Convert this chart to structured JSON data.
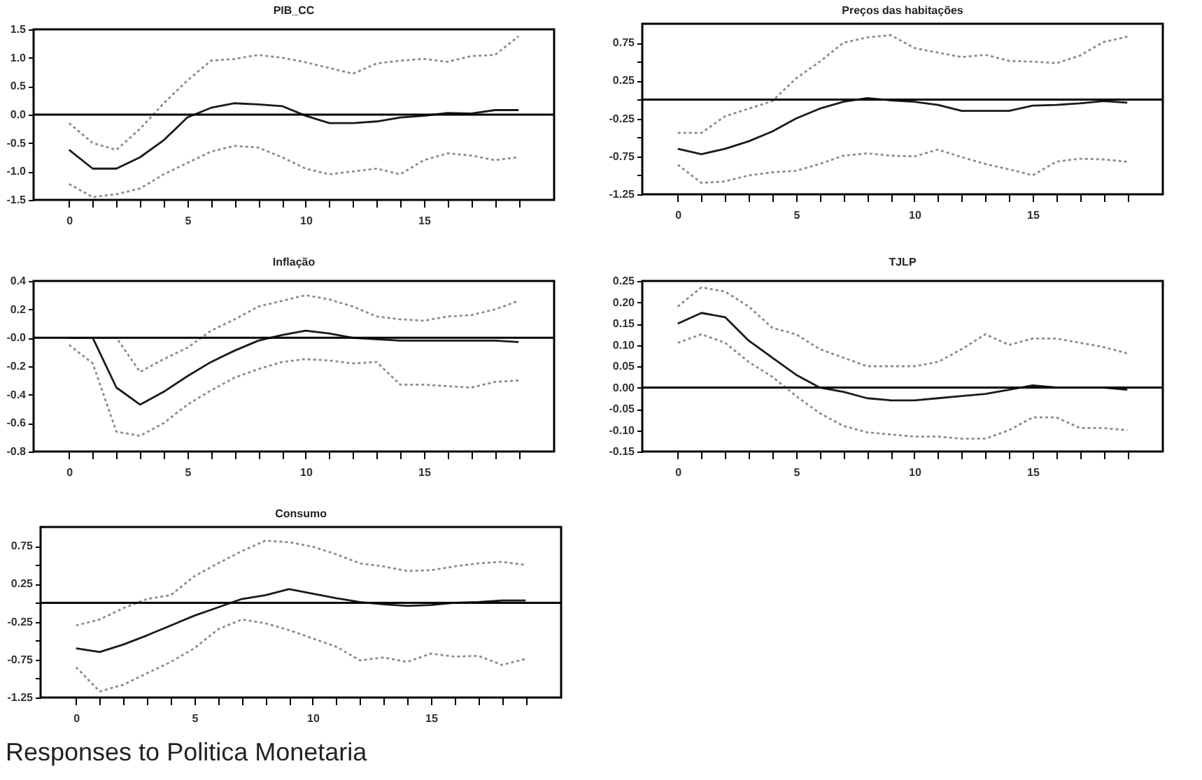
{
  "chart_data": [
    {
      "type": "line",
      "title": "PIB_CC",
      "x": [
        0,
        1,
        2,
        3,
        4,
        5,
        6,
        7,
        8,
        9,
        10,
        11,
        12,
        13,
        14,
        15,
        16,
        17,
        18,
        19
      ],
      "xlim": [
        -1.5,
        20.5
      ],
      "xticks": [
        0,
        {
          "value": 1,
          "label": null
        },
        {
          "value": 2,
          "label": null
        },
        {
          "value": 3,
          "label": null
        },
        {
          "value": 4,
          "label": null
        },
        5,
        {
          "value": 6,
          "label": null
        },
        {
          "value": 7,
          "label": null
        },
        {
          "value": 8,
          "label": null
        },
        {
          "value": 9,
          "label": null
        },
        10,
        {
          "value": 11,
          "label": null
        },
        {
          "value": 12,
          "label": null
        },
        {
          "value": 13,
          "label": null
        },
        {
          "value": 14,
          "label": null
        },
        15,
        {
          "value": 16,
          "label": null
        },
        {
          "value": 17,
          "label": null
        },
        {
          "value": 18,
          "label": null
        },
        {
          "value": 19,
          "label": null
        }
      ],
      "ylim": [
        -1.5,
        1.5
      ],
      "yticks": [
        {
          "value": -1.5,
          "label": "-1.5"
        },
        {
          "value": -1,
          "label": "-1.0"
        },
        {
          "value": -0.5,
          "label": "-0.5"
        },
        {
          "value": 0,
          "label": "0.0"
        },
        {
          "value": 0.5,
          "label": "0.5"
        },
        {
          "value": 1,
          "label": "1.0"
        },
        {
          "value": 1.5,
          "label": "1.5"
        }
      ],
      "grid": false,
      "ref_lines": [
        {
          "axis": "y",
          "value": 0,
          "color": "#000000"
        }
      ],
      "series": [
        {
          "color": "#1a1a1a",
          "line_style": "solid",
          "values": [
            -0.62,
            -0.95,
            -0.95,
            -0.75,
            -0.45,
            -0.05,
            0.12,
            0.2,
            0.18,
            0.15,
            -0.02,
            -0.15,
            -0.15,
            -0.12,
            -0.05,
            -0.02,
            0.03,
            0.02,
            0.08,
            0.08
          ]
        },
        {
          "color": "#8c8c8c",
          "line_style": "dotted",
          "values": [
            -0.15,
            -0.5,
            -0.62,
            -0.25,
            0.2,
            0.6,
            0.95,
            0.98,
            1.05,
            1.0,
            0.92,
            0.82,
            0.72,
            0.9,
            0.95,
            0.98,
            0.93,
            1.03,
            1.05,
            1.38
          ]
        },
        {
          "color": "#8c8c8c",
          "line_style": "dotted",
          "values": [
            -1.22,
            -1.45,
            -1.4,
            -1.3,
            -1.05,
            -0.85,
            -0.65,
            -0.55,
            -0.58,
            -0.75,
            -0.95,
            -1.05,
            -1.0,
            -0.95,
            -1.05,
            -0.8,
            -0.68,
            -0.72,
            -0.8,
            -0.75
          ]
        }
      ]
    },
    {
      "type": "line",
      "title": "Preços das habitações",
      "x": [
        0,
        1,
        2,
        3,
        4,
        5,
        6,
        7,
        8,
        9,
        10,
        11,
        12,
        13,
        14,
        15,
        16,
        17,
        18,
        19
      ],
      "xlim": [
        -1.5,
        20.5
      ],
      "xticks": [
        0,
        {
          "value": 1,
          "label": null
        },
        {
          "value": 2,
          "label": null
        },
        {
          "value": 3,
          "label": null
        },
        {
          "value": 4,
          "label": null
        },
        5,
        {
          "value": 6,
          "label": null
        },
        {
          "value": 7,
          "label": null
        },
        {
          "value": 8,
          "label": null
        },
        {
          "value": 9,
          "label": null
        },
        10,
        {
          "value": 11,
          "label": null
        },
        {
          "value": 12,
          "label": null
        },
        {
          "value": 13,
          "label": null
        },
        {
          "value": 14,
          "label": null
        },
        15,
        {
          "value": 16,
          "label": null
        },
        {
          "value": 17,
          "label": null
        },
        {
          "value": 18,
          "label": null
        },
        {
          "value": 19,
          "label": null
        }
      ],
      "ylim": [
        -1.25,
        1.0
      ],
      "yticks": [
        -1.25,
        {
          "value": -1,
          "label": null
        },
        -0.75,
        {
          "value": -0.5,
          "label": null
        },
        -0.25,
        {
          "value": 0,
          "label": null
        },
        0.25,
        {
          "value": 0.5,
          "label": null
        },
        0.75
      ],
      "grid": false,
      "ref_lines": [
        {
          "axis": "y",
          "value": 0,
          "color": "#000000"
        }
      ],
      "series": [
        {
          "color": "#1a1a1a",
          "line_style": "solid",
          "values": [
            -0.65,
            -0.72,
            -0.65,
            -0.55,
            -0.42,
            -0.25,
            -0.12,
            -0.03,
            0.02,
            -0.01,
            -0.03,
            -0.07,
            -0.15,
            -0.15,
            -0.15,
            -0.08,
            -0.07,
            -0.05,
            -0.02,
            -0.04
          ]
        },
        {
          "color": "#8c8c8c",
          "line_style": "dotted",
          "values": [
            -0.44,
            -0.44,
            -0.22,
            -0.12,
            -0.02,
            0.28,
            0.5,
            0.75,
            0.82,
            0.85,
            0.68,
            0.62,
            0.56,
            0.59,
            0.51,
            0.5,
            0.48,
            0.58,
            0.76,
            0.83
          ]
        },
        {
          "color": "#8c8c8c",
          "line_style": "dotted",
          "values": [
            -0.86,
            -1.1,
            -1.08,
            -1.0,
            -0.96,
            -0.94,
            -0.85,
            -0.74,
            -0.71,
            -0.74,
            -0.75,
            -0.66,
            -0.76,
            -0.85,
            -0.92,
            -1.0,
            -0.82,
            -0.78,
            -0.79,
            -0.82
          ]
        }
      ]
    },
    {
      "type": "line",
      "title": "Inflação",
      "x": [
        0,
        1,
        2,
        3,
        4,
        5,
        6,
        7,
        8,
        9,
        10,
        11,
        12,
        13,
        14,
        15,
        16,
        17,
        18,
        19
      ],
      "xlim": [
        -1.5,
        20.5
      ],
      "xticks": [
        0,
        {
          "value": 1,
          "label": null
        },
        {
          "value": 2,
          "label": null
        },
        {
          "value": 3,
          "label": null
        },
        {
          "value": 4,
          "label": null
        },
        5,
        {
          "value": 6,
          "label": null
        },
        {
          "value": 7,
          "label": null
        },
        {
          "value": 8,
          "label": null
        },
        {
          "value": 9,
          "label": null
        },
        10,
        {
          "value": 11,
          "label": null
        },
        {
          "value": 12,
          "label": null
        },
        {
          "value": 13,
          "label": null
        },
        {
          "value": 14,
          "label": null
        },
        15,
        {
          "value": 16,
          "label": null
        },
        {
          "value": 17,
          "label": null
        },
        {
          "value": 18,
          "label": null
        },
        {
          "value": 19,
          "label": null
        }
      ],
      "ylim": [
        -0.8,
        0.4
      ],
      "yticks": [
        -0.8,
        -0.6,
        -0.4,
        -0.2,
        {
          "value": 0,
          "label": "-0.0"
        },
        0.2,
        0.4
      ],
      "grid": false,
      "ref_lines": [
        {
          "axis": "y",
          "value": 0,
          "color": "#000000"
        }
      ],
      "series": [
        {
          "color": "#1a1a1a",
          "line_style": "solid",
          "values": [
            0,
            0,
            -0.35,
            -0.47,
            -0.38,
            -0.27,
            -0.17,
            -0.09,
            -0.02,
            0.02,
            0.05,
            0.03,
            0,
            -0.01,
            -0.02,
            -0.02,
            -0.02,
            -0.02,
            -0.02,
            -0.03
          ]
        },
        {
          "color": "#8c8c8c",
          "line_style": "dotted",
          "values": [
            0,
            0,
            0,
            -0.24,
            -0.15,
            -0.07,
            0.05,
            0.13,
            0.22,
            0.26,
            0.3,
            0.27,
            0.22,
            0.15,
            0.13,
            0.12,
            0.15,
            0.16,
            0.2,
            0.26
          ]
        },
        {
          "color": "#8c8c8c",
          "line_style": "dotted",
          "values": [
            -0.05,
            -0.18,
            -0.66,
            -0.69,
            -0.6,
            -0.47,
            -0.37,
            -0.28,
            -0.22,
            -0.17,
            -0.15,
            -0.16,
            -0.18,
            -0.17,
            -0.33,
            -0.33,
            -0.34,
            -0.35,
            -0.31,
            -0.3
          ]
        }
      ]
    },
    {
      "type": "line",
      "title": "TJLP",
      "x": [
        0,
        1,
        2,
        3,
        4,
        5,
        6,
        7,
        8,
        9,
        10,
        11,
        12,
        13,
        14,
        15,
        16,
        17,
        18,
        19
      ],
      "xlim": [
        -1.5,
        20.5
      ],
      "xticks": [
        0,
        {
          "value": 1,
          "label": null
        },
        {
          "value": 2,
          "label": null
        },
        {
          "value": 3,
          "label": null
        },
        {
          "value": 4,
          "label": null
        },
        5,
        {
          "value": 6,
          "label": null
        },
        {
          "value": 7,
          "label": null
        },
        {
          "value": 8,
          "label": null
        },
        {
          "value": 9,
          "label": null
        },
        10,
        {
          "value": 11,
          "label": null
        },
        {
          "value": 12,
          "label": null
        },
        {
          "value": 13,
          "label": null
        },
        {
          "value": 14,
          "label": null
        },
        15,
        {
          "value": 16,
          "label": null
        },
        {
          "value": 17,
          "label": null
        },
        {
          "value": 18,
          "label": null
        },
        {
          "value": 19,
          "label": null
        }
      ],
      "ylim": [
        -0.15,
        0.25
      ],
      "yticks": [
        -0.15,
        {
          "value": -0.1,
          "label": "-0.10"
        },
        -0.05,
        {
          "value": 0,
          "label": "0.00"
        },
        0.05,
        {
          "value": 0.1,
          "label": "0.10"
        },
        0.15,
        {
          "value": 0.2,
          "label": "0.20"
        },
        0.25
      ],
      "grid": false,
      "ref_lines": [
        {
          "axis": "y",
          "value": 0,
          "color": "#000000"
        }
      ],
      "series": [
        {
          "color": "#1a1a1a",
          "line_style": "solid",
          "values": [
            0.15,
            0.175,
            0.165,
            0.11,
            0.07,
            0.03,
            0.0,
            -0.01,
            -0.025,
            -0.03,
            -0.03,
            -0.025,
            -0.02,
            -0.015,
            -0.005,
            0.005,
            0.0,
            0.0,
            0.0,
            -0.005
          ]
        },
        {
          "color": "#8c8c8c",
          "line_style": "dotted",
          "values": [
            0.19,
            0.235,
            0.225,
            0.19,
            0.14,
            0.125,
            0.09,
            0.07,
            0.05,
            0.05,
            0.05,
            0.06,
            0.09,
            0.125,
            0.1,
            0.115,
            0.115,
            0.105,
            0.095,
            0.08
          ]
        },
        {
          "color": "#8c8c8c",
          "line_style": "dotted",
          "values": [
            0.105,
            0.125,
            0.105,
            0.06,
            0.025,
            -0.02,
            -0.06,
            -0.09,
            -0.105,
            -0.11,
            -0.115,
            -0.115,
            -0.12,
            -0.12,
            -0.1,
            -0.07,
            -0.07,
            -0.095,
            -0.095,
            -0.1
          ]
        }
      ]
    },
    {
      "type": "line",
      "title": "Consumo",
      "x": [
        0,
        1,
        2,
        3,
        4,
        5,
        6,
        7,
        8,
        9,
        10,
        11,
        12,
        13,
        14,
        15,
        16,
        17,
        18,
        19
      ],
      "xlim": [
        -1.5,
        20.5
      ],
      "xticks": [
        0,
        {
          "value": 1,
          "label": null
        },
        {
          "value": 2,
          "label": null
        },
        {
          "value": 3,
          "label": null
        },
        {
          "value": 4,
          "label": null
        },
        5,
        {
          "value": 6,
          "label": null
        },
        {
          "value": 7,
          "label": null
        },
        {
          "value": 8,
          "label": null
        },
        {
          "value": 9,
          "label": null
        },
        10,
        {
          "value": 11,
          "label": null
        },
        {
          "value": 12,
          "label": null
        },
        {
          "value": 13,
          "label": null
        },
        {
          "value": 14,
          "label": null
        },
        15,
        {
          "value": 16,
          "label": null
        },
        {
          "value": 17,
          "label": null
        },
        {
          "value": 18,
          "label": null
        },
        {
          "value": 19,
          "label": null
        }
      ],
      "ylim": [
        -1.25,
        1.0
      ],
      "yticks": [
        -1.25,
        {
          "value": -1,
          "label": null
        },
        -0.75,
        {
          "value": -0.5,
          "label": null
        },
        -0.25,
        {
          "value": 0,
          "label": null
        },
        0.25,
        {
          "value": 0.5,
          "label": null
        },
        0.75
      ],
      "grid": false,
      "ref_lines": [
        {
          "axis": "y",
          "value": 0,
          "color": "#000000"
        }
      ],
      "annotations": [
        "Responses to Politica Monetaria"
      ],
      "series": [
        {
          "color": "#1a1a1a",
          "line_style": "solid",
          "values": [
            -0.6,
            -0.65,
            -0.55,
            -0.43,
            -0.3,
            -0.17,
            -0.06,
            0.05,
            0.1,
            0.18,
            0.12,
            0.06,
            0.01,
            -0.02,
            -0.04,
            -0.03,
            0.0,
            0.01,
            0.03,
            0.03
          ]
        },
        {
          "color": "#8c8c8c",
          "line_style": "dotted",
          "values": [
            -0.3,
            -0.22,
            -0.07,
            0.05,
            0.1,
            0.35,
            0.52,
            0.68,
            0.82,
            0.8,
            0.74,
            0.64,
            0.52,
            0.48,
            0.42,
            0.43,
            0.48,
            0.52,
            0.54,
            0.5
          ]
        },
        {
          "color": "#8c8c8c",
          "line_style": "dotted",
          "values": [
            -0.85,
            -1.17,
            -1.08,
            -0.93,
            -0.78,
            -0.6,
            -0.35,
            -0.22,
            -0.27,
            -0.36,
            -0.47,
            -0.58,
            -0.76,
            -0.72,
            -0.78,
            -0.67,
            -0.71,
            -0.7,
            -0.82,
            -0.74
          ]
        }
      ]
    }
  ]
}
